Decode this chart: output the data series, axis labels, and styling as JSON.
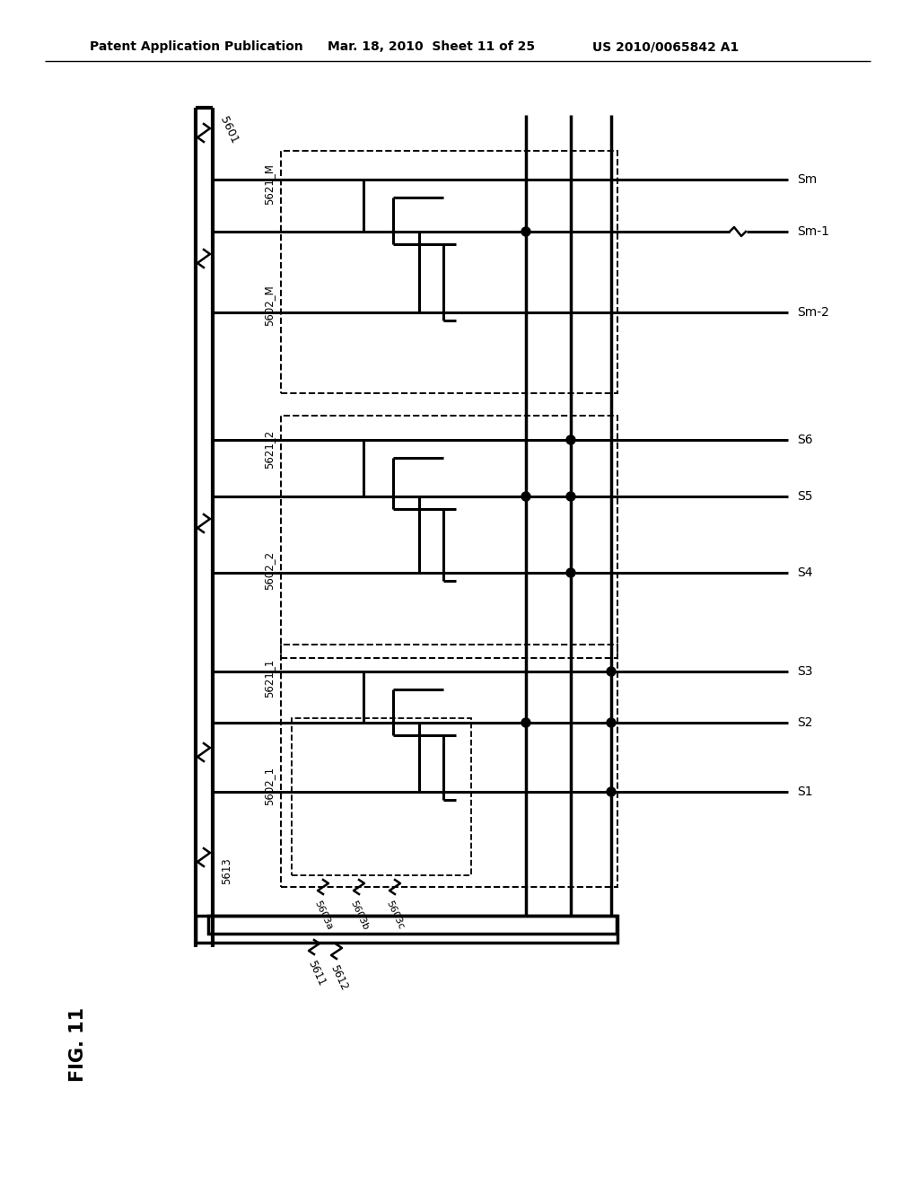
{
  "header_left": "Patent Application Publication",
  "header_mid": "Mar. 18, 2010  Sheet 11 of 25",
  "header_right": "US 2010/0065842 A1",
  "fig_label": "FIG. 11",
  "background_color": "#ffffff"
}
